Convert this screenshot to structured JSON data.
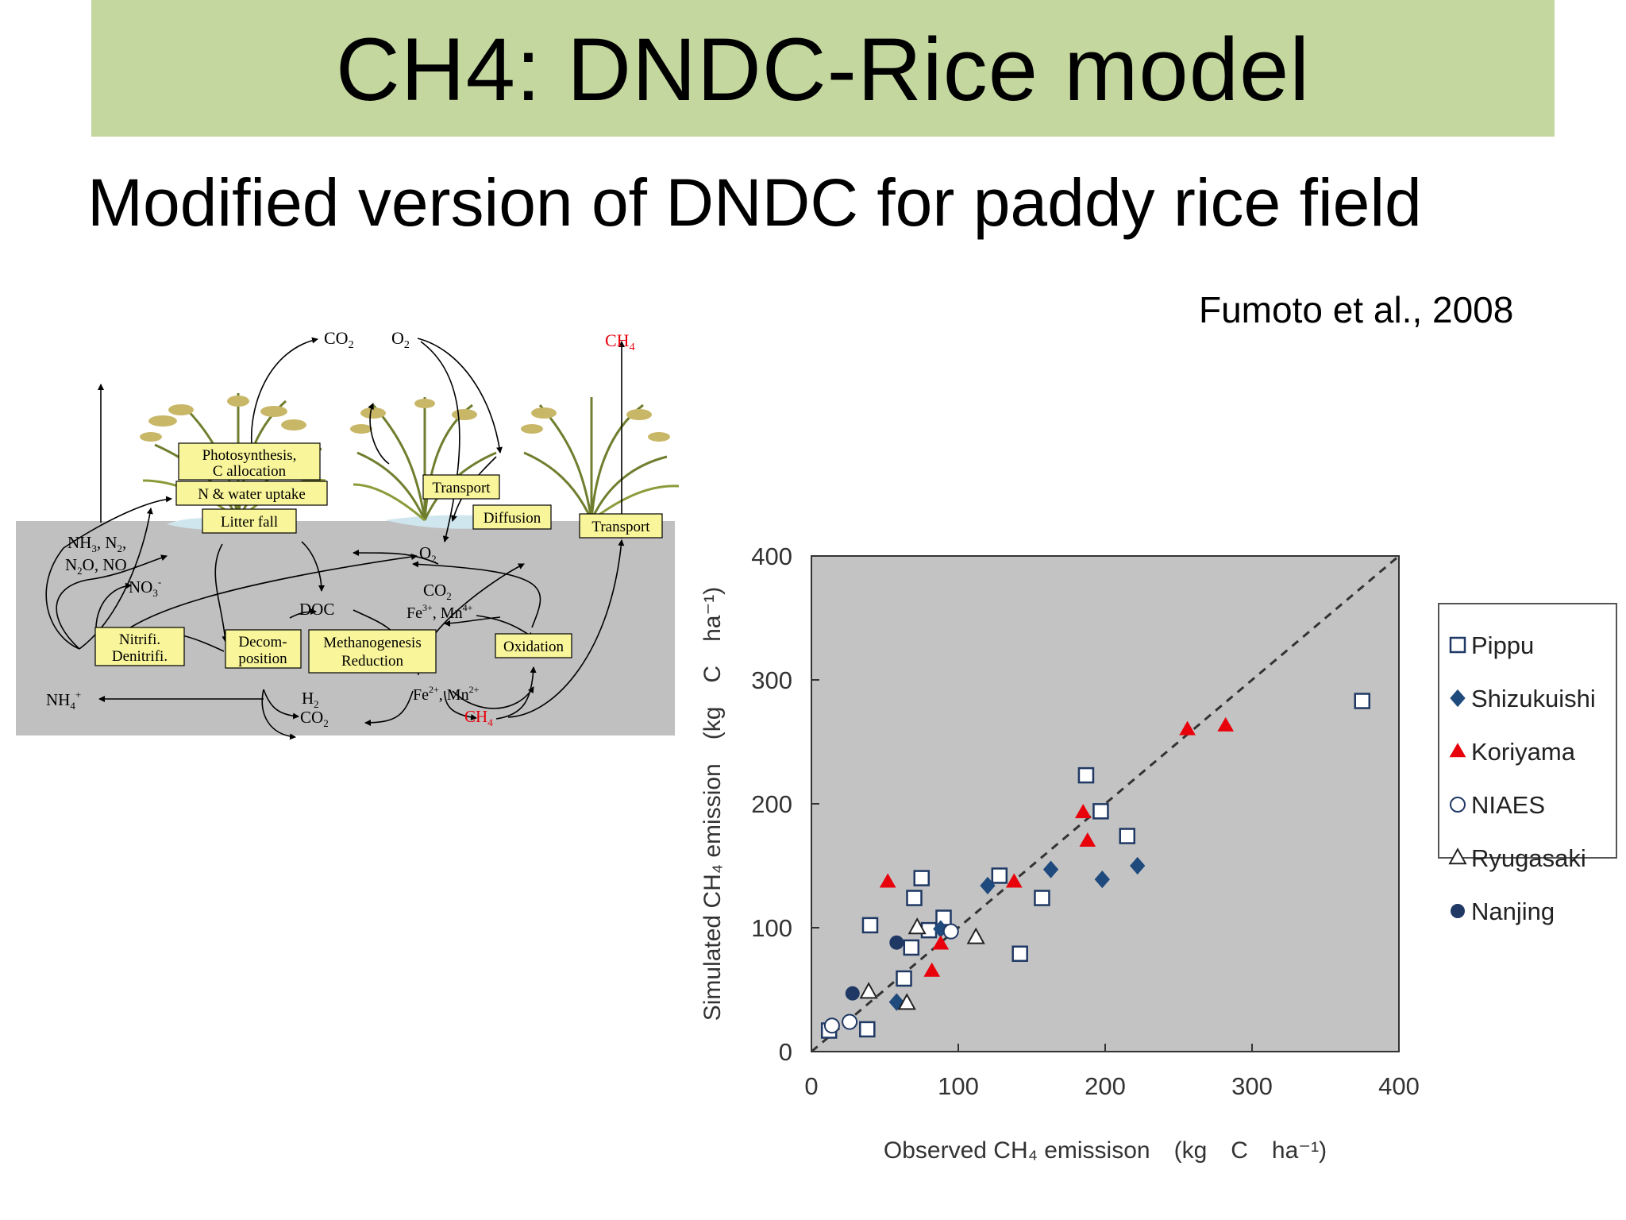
{
  "slide": {
    "title": "CH4: DNDC-Rice model",
    "subtitle": "Modified version of DNDC for paddy rice field",
    "citation": "Fumoto et al., 2008"
  },
  "colors": {
    "title_band": "#c4d79f",
    "soil": "#c0c0c0",
    "process_box": "#f8f59a",
    "ch4_red": "#e8000b",
    "plot_bg": "#c3c3c3",
    "navy": "#1f4a7d"
  },
  "diagram": {
    "gases_top": {
      "co2": "CO",
      "co2_sub": "2",
      "o2": "O",
      "o2_sub": "2",
      "ch4": "CH",
      "ch4_sub": "4"
    },
    "boxes": {
      "photosynthesis_line1": "Photosynthesis,",
      "photosynthesis_line2": "C allocation",
      "n_water_uptake": "N & water uptake",
      "litter_fall": "Litter fall",
      "transport_plant": "Transport",
      "diffusion": "Diffusion",
      "transport_right": "Transport",
      "nitrifi_line1": "Nitrifi.",
      "nitrifi_line2": "Denitrifi.",
      "decom_line1": "Decom-",
      "decom_line2": "position",
      "methanogenesis_line1": "Methanogenesis",
      "methanogenesis_line2": "Reduction",
      "oxidation": "Oxidation"
    },
    "soil_labels": {
      "nh3_a": "NH",
      "nh3_sub": "3",
      "nh3_b": ", N",
      "n2_sub": "2",
      "nh3_c": ",",
      "n2o_a": "N",
      "n2o_sub": "2",
      "n2o_b": "O, NO",
      "no3": "NO",
      "no3_sub": "3",
      "no3_sup": "-",
      "o2": "O",
      "o2_sub": "2",
      "co2": "CO",
      "co2_sub": "2",
      "doc": "DOC",
      "fe_mn_ox": "Fe",
      "fe3_sup": "3+",
      "mn_ox_mid": ", Mn",
      "mn4_sup": "4+",
      "fe_mn_red": "Fe",
      "fe2_sup": "2+",
      "mn_red_mid": ", Mn",
      "mn2_sup": "2+",
      "nh4": "NH",
      "nh4_sub": "4",
      "nh4_sup": "+",
      "h2": "H",
      "h2_sub": "2",
      "co2_low": "CO",
      "co2_low_sub": "2",
      "ch4": "CH",
      "ch4_sub": "4"
    }
  },
  "chart_data": {
    "type": "scatter",
    "title": "",
    "xlabel": "Observed CH₄ emissison　(kg　C　ha⁻¹)",
    "ylabel": "Simulated CH₄ emission　(kg　C　ha⁻¹)",
    "xlim": [
      0,
      400
    ],
    "ylim": [
      0,
      400
    ],
    "xticks": [
      0,
      100,
      200,
      300,
      400
    ],
    "yticks": [
      0,
      100,
      200,
      300,
      400
    ],
    "grid": false,
    "reference_line": "1:1 dashed",
    "legend_position": "right",
    "series": [
      {
        "name": "Pippu",
        "marker": "open-square",
        "color": "#1f3864",
        "points": [
          [
            375,
            283
          ],
          [
            187,
            223
          ],
          [
            197,
            194
          ],
          [
            215,
            174
          ],
          [
            128,
            142
          ],
          [
            75,
            140
          ],
          [
            70,
            124
          ],
          [
            157,
            124
          ],
          [
            40,
            102
          ],
          [
            90,
            108
          ],
          [
            80,
            98
          ],
          [
            142,
            79
          ],
          [
            68,
            84
          ],
          [
            63,
            59
          ],
          [
            38,
            18
          ],
          [
            12,
            17
          ]
        ]
      },
      {
        "name": "Shizukuishi",
        "marker": "filled-diamond",
        "color": "#1f4a7d",
        "points": [
          [
            222,
            150
          ],
          [
            163,
            147
          ],
          [
            198,
            139
          ],
          [
            120,
            134
          ],
          [
            88,
            99
          ],
          [
            58,
            40
          ]
        ]
      },
      {
        "name": "Koriyama",
        "marker": "filled-triangle",
        "color": "#e8000b",
        "points": [
          [
            282,
            263
          ],
          [
            256,
            260
          ],
          [
            185,
            193
          ],
          [
            188,
            170
          ],
          [
            52,
            137
          ],
          [
            138,
            137
          ],
          [
            88,
            87
          ],
          [
            82,
            65
          ]
        ]
      },
      {
        "name": "NIAES",
        "marker": "open-circle",
        "color": "#1f3864",
        "points": [
          [
            95,
            97
          ],
          [
            14,
            21
          ],
          [
            26,
            24
          ]
        ]
      },
      {
        "name": "Ryugasaki",
        "marker": "open-triangle",
        "color": "#222222",
        "points": [
          [
            72,
            100
          ],
          [
            112,
            92
          ],
          [
            39,
            48
          ],
          [
            65,
            39
          ]
        ]
      },
      {
        "name": "Nanjing",
        "marker": "filled-circle",
        "color": "#1f3864",
        "points": [
          [
            58,
            88
          ],
          [
            28,
            47
          ]
        ]
      }
    ]
  }
}
